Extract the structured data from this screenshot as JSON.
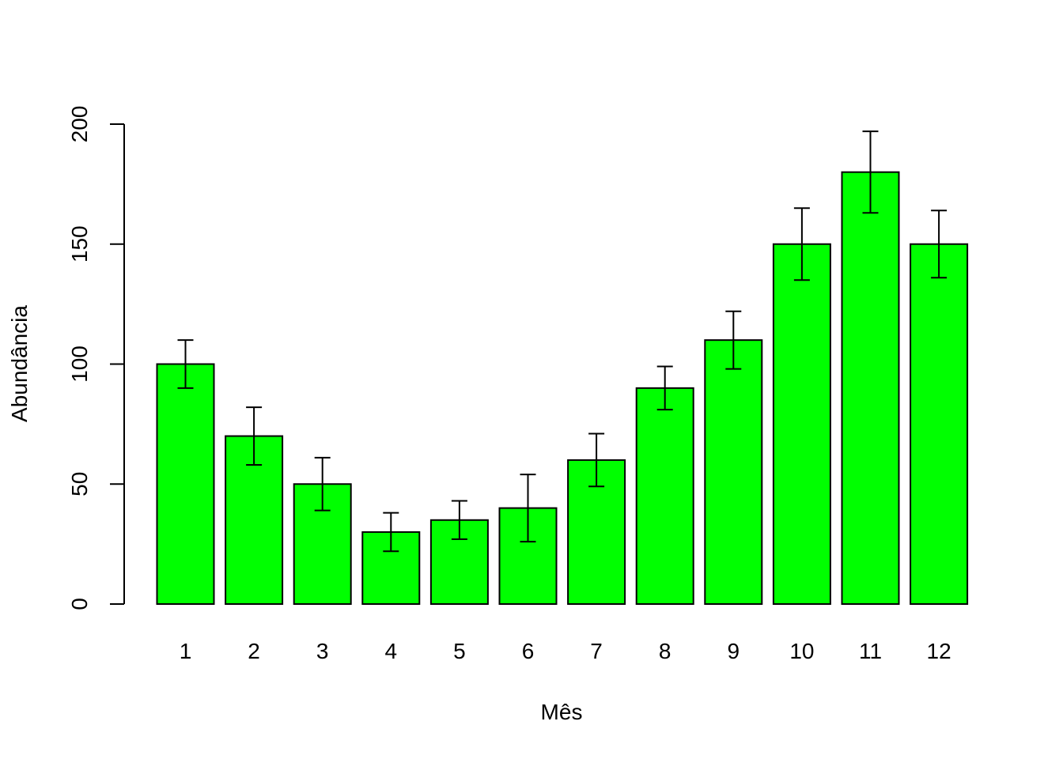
{
  "chart_data": {
    "type": "bar",
    "title": "",
    "xlabel": "Mês",
    "ylabel": "Abundância",
    "categories": [
      "1",
      "2",
      "3",
      "4",
      "5",
      "6",
      "7",
      "8",
      "9",
      "10",
      "11",
      "12"
    ],
    "values": [
      100,
      70,
      50,
      30,
      35,
      40,
      60,
      90,
      110,
      150,
      180,
      150
    ],
    "error_low": [
      90,
      58,
      39,
      22,
      27,
      26,
      49,
      81,
      98,
      135,
      163,
      136
    ],
    "error_high": [
      110,
      82,
      61,
      38,
      43,
      54,
      71,
      99,
      122,
      165,
      197,
      164
    ],
    "ylim": [
      0,
      200
    ],
    "yticks": [
      0,
      50,
      100,
      150,
      200
    ],
    "grid": false,
    "legend": "none",
    "bar_color": "#00ff00",
    "bar_border_color": "#000000"
  }
}
